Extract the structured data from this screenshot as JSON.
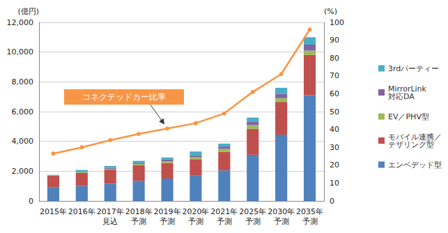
{
  "chart_data": {
    "type": "bar",
    "stacked": true,
    "grid": true,
    "legend": "right",
    "ylabel": "(億円)",
    "y2label": "(%)",
    "categories": [
      "2015年",
      "2016年",
      "2017年\n見込",
      "2018年\n予測",
      "2019年\n予測",
      "2020年\n予測",
      "2021年\n予測",
      "2025年\n予測",
      "2030年\n予測",
      "2035年\n予測"
    ],
    "ylim": [
      0,
      12000
    ],
    "yticks": [
      0,
      {
        "value": 2000,
        "label": "2,000"
      },
      {
        "value": 4000,
        "label": "4,000"
      },
      {
        "value": 6000,
        "label": "6,000"
      },
      {
        "value": 8000,
        "label": "8,000"
      },
      {
        "value": 10000,
        "label": "10,000"
      },
      {
        "value": 12000,
        "label": "12,000"
      }
    ],
    "y2lim": [
      0,
      100
    ],
    "y2ticks": [
      0,
      10,
      20,
      30,
      40,
      50,
      60,
      70,
      80,
      90,
      100
    ],
    "series": [
      {
        "name": "エンベデッド型",
        "color": "#4f81bd",
        "values": [
          930,
          1000,
          1150,
          1350,
          1500,
          1700,
          2050,
          3100,
          4450,
          7100
        ]
      },
      {
        "name": "モバイル連携／\nテザリング型",
        "color": "#c0504d",
        "values": [
          780,
          880,
          950,
          1050,
          1050,
          1100,
          1250,
          1750,
          2200,
          2700
        ]
      },
      {
        "name": "EV／PHV型",
        "color": "#9bbb59",
        "values": [
          20,
          40,
          60,
          80,
          120,
          150,
          200,
          250,
          250,
          300
        ]
      },
      {
        "name": "MirrorLink\n対応DA",
        "color": "#8064a2",
        "values": [
          0,
          30,
          60,
          80,
          100,
          120,
          150,
          200,
          300,
          400
        ]
      },
      {
        "name": "3rdパーティー",
        "color": "#4bacc6",
        "values": [
          20,
          130,
          130,
          130,
          150,
          250,
          200,
          300,
          400,
          500
        ]
      },
      {
        "name": "コネクテッドカー比率",
        "type": "line",
        "axis": "y2",
        "color": "#f79646",
        "marker": "circle",
        "values": [
          26.5,
          30,
          34,
          37.5,
          40.5,
          43.5,
          49,
          61,
          71,
          96
        ]
      }
    ]
  }
}
